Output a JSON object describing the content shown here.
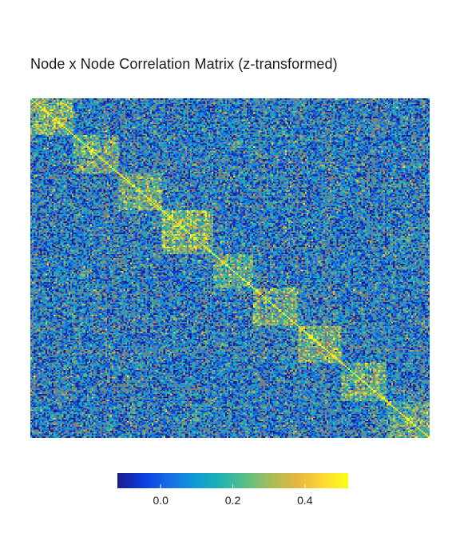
{
  "chart_data": {
    "type": "heatmap",
    "title": "Node x Node Correlation Matrix (z-transformed)",
    "xlabel": "",
    "ylabel": "",
    "matrix_size": 240,
    "value_range": [
      -0.12,
      0.52
    ],
    "block_boundaries": [
      0.0,
      0.11,
      0.22,
      0.33,
      0.46,
      0.56,
      0.67,
      0.78,
      0.89,
      1.0
    ],
    "within_block_mean": [
      0.26,
      0.22,
      0.24,
      0.28,
      0.2,
      0.22,
      0.24,
      0.25,
      0.21
    ],
    "between_block_mean": 0.05,
    "noise_sd": 0.14,
    "missing_fraction": 0.18,
    "missing_color": "#7f7f7f",
    "colormap": "parula",
    "colormap_stops": [
      "#1b1b8c",
      "#0a3ee0",
      "#1a6ce6",
      "#0d9ad6",
      "#1cb3b3",
      "#59bf84",
      "#a8bd5a",
      "#e6b63c",
      "#fcd834",
      "#faff14"
    ],
    "colorbar": {
      "orientation": "horizontal",
      "placement": "bottom",
      "ticks": [
        0.0,
        0.2,
        0.4
      ],
      "tick_labels": [
        "0.0",
        "0.2",
        "0.4"
      ]
    },
    "grid": false,
    "legend": "none"
  }
}
